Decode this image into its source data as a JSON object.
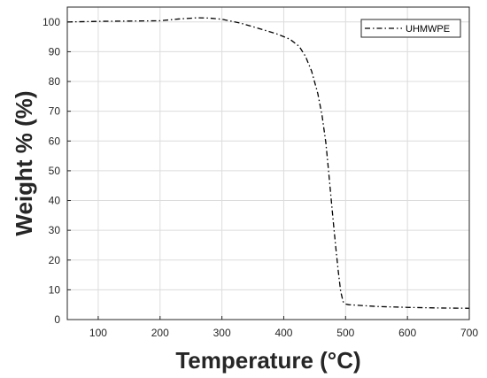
{
  "chart_data": {
    "type": "line",
    "title": "",
    "xlabel": "Temperature (°C)",
    "ylabel": "Weight % (%)",
    "xlim": [
      50,
      700
    ],
    "ylim": [
      0,
      105
    ],
    "xticks": [
      100,
      200,
      300,
      400,
      500,
      600,
      700
    ],
    "yticks": [
      0,
      10,
      20,
      30,
      40,
      50,
      60,
      70,
      80,
      90,
      100
    ],
    "grid": true,
    "legend_position": "top-right",
    "series": [
      {
        "name": "UHMWPE",
        "line_style": "dash-dot",
        "color": "#000000",
        "x": [
          50,
          100,
          150,
          200,
          230,
          260,
          280,
          300,
          330,
          360,
          390,
          410,
          425,
          435,
          445,
          455,
          462,
          468,
          472,
          476,
          480,
          484,
          488,
          492,
          496,
          500,
          505,
          520,
          550,
          600,
          650,
          700
        ],
        "y": [
          100.0,
          100.2,
          100.3,
          100.4,
          101.0,
          101.4,
          101.3,
          100.9,
          99.6,
          97.8,
          95.9,
          94.2,
          91.8,
          88.5,
          83.5,
          76.0,
          68.5,
          59.5,
          51.0,
          42.0,
          33.0,
          24.5,
          16.5,
          9.5,
          6.0,
          5.2,
          5.0,
          4.8,
          4.4,
          4.1,
          3.9,
          3.8
        ]
      }
    ]
  }
}
